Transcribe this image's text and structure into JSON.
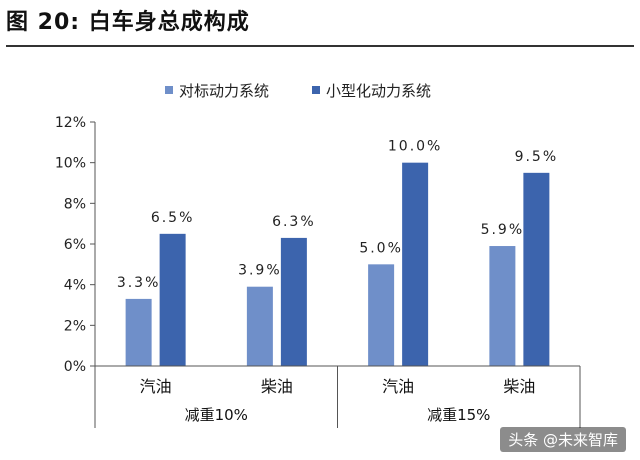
{
  "figure": {
    "title": "图 20:  白车身总成构成"
  },
  "watermark": "头条 @未来智库",
  "colors": {
    "series_light": "#6f8fc9",
    "series_dark": "#3c64ad",
    "axis": "#555555",
    "background": "#ffffff"
  },
  "chart_data": {
    "type": "bar",
    "title": "",
    "xlabel": "",
    "ylabel": "",
    "ylim": [
      0,
      12
    ],
    "yticks": [
      "0%",
      "2%",
      "4%",
      "6%",
      "8%",
      "10%",
      "12%"
    ],
    "grid": false,
    "legend_position": "top",
    "categories": [
      "汽油",
      "柴油",
      "汽油",
      "柴油"
    ],
    "groups": [
      {
        "label": "减重10%",
        "categories": [
          0,
          1
        ]
      },
      {
        "label": "减重15%",
        "categories": [
          2,
          3
        ]
      }
    ],
    "series": [
      {
        "name": "对标动力系统",
        "values": [
          3.3,
          3.9,
          5.0,
          5.9
        ],
        "labels": [
          "3.3%",
          "3.9%",
          "5.0%",
          "5.9%"
        ]
      },
      {
        "name": "小型化动力系统",
        "values": [
          6.5,
          6.3,
          10.0,
          9.5
        ],
        "labels": [
          "6.5%",
          "6.3%",
          "10.0%",
          "9.5%"
        ]
      }
    ]
  }
}
